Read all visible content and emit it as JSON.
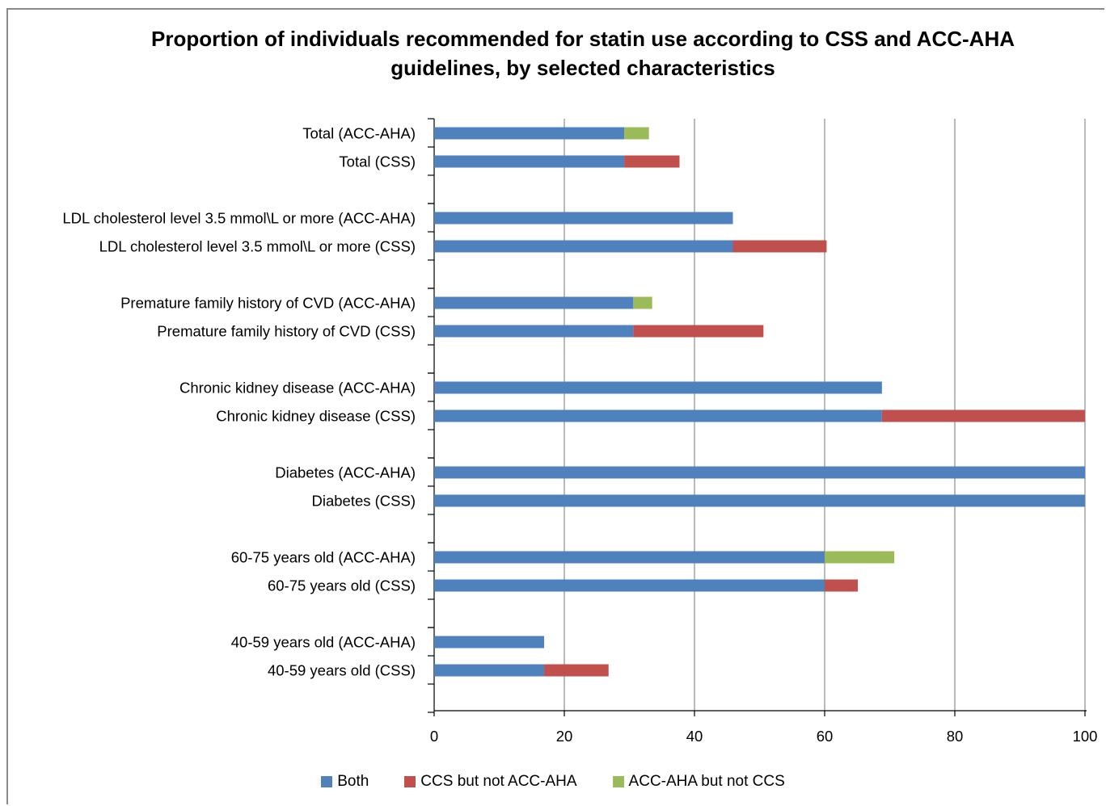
{
  "chart_data": {
    "type": "bar",
    "orientation": "horizontal",
    "stacked": true,
    "title_lines": [
      "Proportion of individuals recommended for statin use according to CSS and ACC-AHA",
      "guidelines, by selected characteristics"
    ],
    "xlim": [
      0,
      100
    ],
    "x_ticks": [
      "0",
      "20",
      "40",
      "60",
      "80",
      "100"
    ],
    "grid": true,
    "legend_position": "bottom",
    "categories": [
      "Total (ACC-AHA)",
      "Total (CSS)",
      "LDL cholesterol level 3.5 mmol\\L or more (ACC-AHA)",
      "LDL cholesterol level 3.5 mmol\\L or more (CSS)",
      "Premature family history of CVD (ACC-AHA)",
      "Premature family history of CVD (CSS)",
      "Chronic kidney disease (ACC-AHA)",
      "Chronic kidney disease (CSS)",
      "Diabetes (ACC-AHA)",
      "Diabetes (CSS)",
      "60-75 years old (ACC-AHA)",
      "60-75 years old (CSS)",
      "40-59 years old (ACC-AHA)",
      "40-59 years old (CSS)"
    ],
    "series": [
      {
        "name": "Both",
        "color": "#4f81bd",
        "values": [
          29.2,
          29.2,
          45.9,
          45.9,
          30.6,
          30.6,
          68.8,
          68.8,
          100,
          100,
          60,
          60,
          16.9,
          16.9
        ]
      },
      {
        "name": "CCS but not ACC-AHA",
        "color": "#c0504d",
        "values": [
          0,
          8.5,
          0,
          14.4,
          0,
          20,
          0,
          31.2,
          0,
          0,
          0,
          5.1,
          0,
          9.9
        ]
      },
      {
        "name": "ACC-AHA but not CCS",
        "color": "#9bbb59",
        "values": [
          3.8,
          0,
          0,
          0,
          2.9,
          0,
          0,
          0,
          0,
          0,
          10.7,
          0,
          0,
          0
        ]
      }
    ]
  }
}
